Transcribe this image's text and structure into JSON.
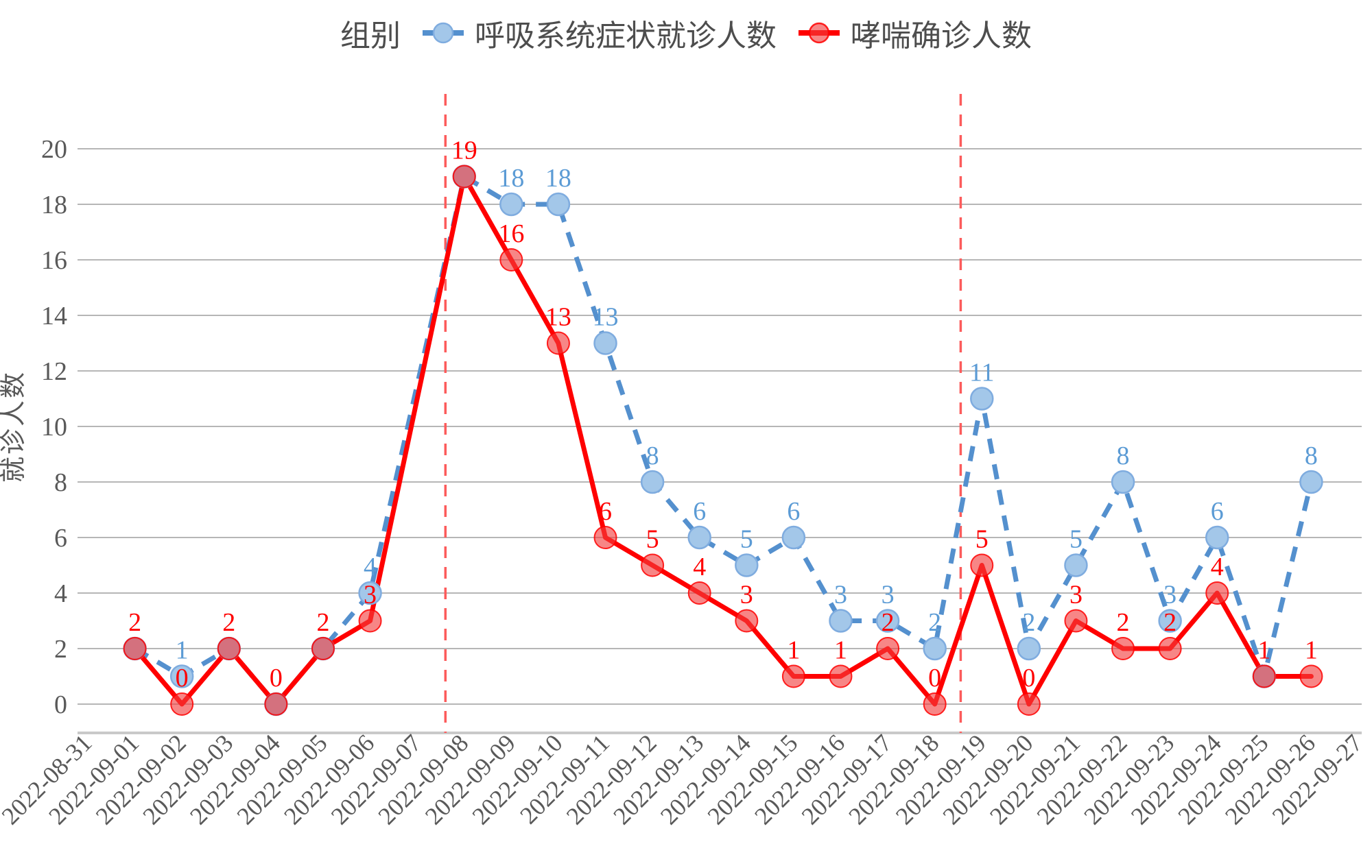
{
  "legend": {
    "group_label": "组别",
    "items": [
      {
        "label": "呼吸系统症状就诊人数",
        "line_color": "#5490CE",
        "marker_fill": "#A3C7E9",
        "marker_stroke": "#7FACDF",
        "line_style": "dashed"
      },
      {
        "label": "哮喘确诊人数",
        "line_color": "#FF0000",
        "marker_fill": "#F87C7C",
        "marker_stroke": "#FF3333",
        "line_style": "solid"
      }
    ]
  },
  "axes": {
    "ylabel": "就诊人数",
    "y_ticks": [
      0,
      2,
      4,
      6,
      8,
      10,
      12,
      14,
      16,
      18,
      20
    ],
    "ylim": [
      0,
      20
    ],
    "tick_label_color": "#595959",
    "gridline_color": "#ABABAB",
    "axis_line_color": "#C9C9C9"
  },
  "chart_data": {
    "type": "line",
    "title": "",
    "xlabel": "",
    "ylabel": "就诊人数",
    "ylim": [
      0,
      20
    ],
    "grid": true,
    "legend_position": "top-center",
    "x_categories": [
      "2022-08-31",
      "2022-09-01",
      "2022-09-02",
      "2022-09-03",
      "2022-09-04",
      "2022-09-05",
      "2022-09-06",
      "2022-09-07",
      "2022-09-08",
      "2022-09-09",
      "2022-09-10",
      "2022-09-11",
      "2022-09-12",
      "2022-09-13",
      "2022-09-14",
      "2022-09-15",
      "2022-09-16",
      "2022-09-17",
      "2022-09-18",
      "2022-09-19",
      "2022-09-20",
      "2022-09-21",
      "2022-09-22",
      "2022-09-23",
      "2022-09-24",
      "2022-09-25",
      "2022-09-26",
      "2022-09-27"
    ],
    "series": [
      {
        "name": "呼吸系统症状就诊人数",
        "style": "dashed",
        "line_color": "#5490CE",
        "label_color": "#5B9BD5",
        "marker_fill": "#A3C7E9",
        "marker_stroke": "#7FACDF",
        "points": [
          {
            "date": "2022-09-01",
            "value": 2
          },
          {
            "date": "2022-09-02",
            "value": 1
          },
          {
            "date": "2022-09-03",
            "value": 2
          },
          {
            "date": "2022-09-04",
            "value": 0
          },
          {
            "date": "2022-09-05",
            "value": 2
          },
          {
            "date": "2022-09-06",
            "value": 4
          },
          {
            "date": "2022-09-08",
            "value": 19
          },
          {
            "date": "2022-09-09",
            "value": 18
          },
          {
            "date": "2022-09-10",
            "value": 18
          },
          {
            "date": "2022-09-11",
            "value": 13
          },
          {
            "date": "2022-09-12",
            "value": 8
          },
          {
            "date": "2022-09-13",
            "value": 6
          },
          {
            "date": "2022-09-14",
            "value": 5
          },
          {
            "date": "2022-09-15",
            "value": 6
          },
          {
            "date": "2022-09-16",
            "value": 3
          },
          {
            "date": "2022-09-17",
            "value": 3
          },
          {
            "date": "2022-09-18",
            "value": 2
          },
          {
            "date": "2022-09-19",
            "value": 11
          },
          {
            "date": "2022-09-20",
            "value": 2
          },
          {
            "date": "2022-09-21",
            "value": 5
          },
          {
            "date": "2022-09-22",
            "value": 8
          },
          {
            "date": "2022-09-23",
            "value": 3
          },
          {
            "date": "2022-09-24",
            "value": 6
          },
          {
            "date": "2022-09-25",
            "value": 1
          },
          {
            "date": "2022-09-26",
            "value": 8
          }
        ]
      },
      {
        "name": "哮喘确诊人数",
        "style": "solid",
        "line_color": "#FF0000",
        "label_color": "#FF0000",
        "marker_fill": "rgba(242,60,60,0.62)",
        "marker_stroke": "rgba(255,0,0,0.85)",
        "points": [
          {
            "date": "2022-09-01",
            "value": 2
          },
          {
            "date": "2022-09-02",
            "value": 0
          },
          {
            "date": "2022-09-03",
            "value": 2
          },
          {
            "date": "2022-09-04",
            "value": 0
          },
          {
            "date": "2022-09-05",
            "value": 2
          },
          {
            "date": "2022-09-06",
            "value": 3
          },
          {
            "date": "2022-09-08",
            "value": 19
          },
          {
            "date": "2022-09-09",
            "value": 16
          },
          {
            "date": "2022-09-10",
            "value": 13
          },
          {
            "date": "2022-09-11",
            "value": 6
          },
          {
            "date": "2022-09-12",
            "value": 5
          },
          {
            "date": "2022-09-13",
            "value": 4
          },
          {
            "date": "2022-09-14",
            "value": 3
          },
          {
            "date": "2022-09-15",
            "value": 1
          },
          {
            "date": "2022-09-16",
            "value": 1
          },
          {
            "date": "2022-09-17",
            "value": 2
          },
          {
            "date": "2022-09-18",
            "value": 0
          },
          {
            "date": "2022-09-19",
            "value": 5
          },
          {
            "date": "2022-09-20",
            "value": 0
          },
          {
            "date": "2022-09-21",
            "value": 3
          },
          {
            "date": "2022-09-22",
            "value": 2
          },
          {
            "date": "2022-09-23",
            "value": 2
          },
          {
            "date": "2022-09-24",
            "value": 4
          },
          {
            "date": "2022-09-25",
            "value": 1
          },
          {
            "date": "2022-09-26",
            "value": 1
          }
        ]
      }
    ],
    "data_labels": true,
    "overlap_label_rule": "when both series share a value at a date only the red label is shown",
    "vertical_reference_lines": [
      {
        "x_index": 7.6,
        "between": [
          "2022-09-07",
          "2022-09-08"
        ],
        "color": "#FC5B5B",
        "style": "dashed"
      },
      {
        "x_index": 18.55,
        "between": [
          "2022-09-18",
          "2022-09-19"
        ],
        "color": "#FC5B5B",
        "style": "dashed"
      }
    ]
  }
}
